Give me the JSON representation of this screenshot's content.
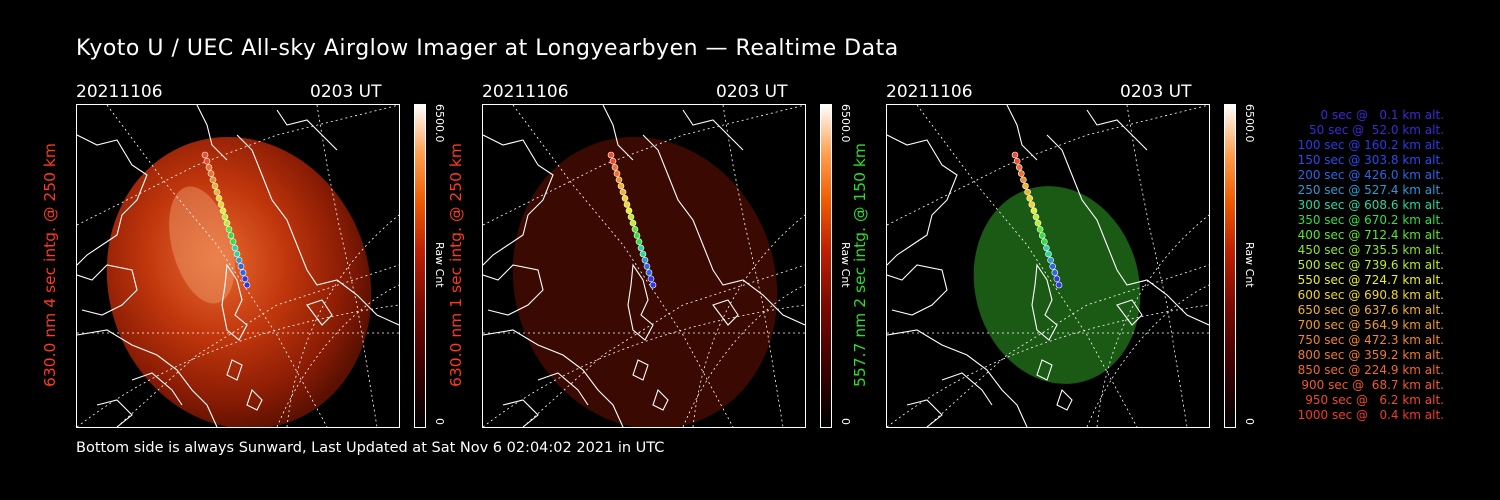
{
  "title": "Kyoto U / UEC All-sky Airglow Imager at Longyearbyen — Realtime Data",
  "footer": "Bottom side is always Sunward, Last Updated at Sat Nov  6 02:04:02 2021 in UTC",
  "panels": [
    {
      "date": "20211106",
      "time": "0203 UT",
      "label": "630.0 nm 4 sec intg. @ 250 km",
      "label_color": "#ff3a1a",
      "cbar_max": "6500.0",
      "cbar_unit": "Raw Cnt",
      "cbar_min": "0"
    },
    {
      "date": "20211106",
      "time": "0203 UT",
      "label": "630.0 nm 1 sec intg. @ 250 km",
      "label_color": "#ff3a1a",
      "cbar_max": "6500.0",
      "cbar_unit": "Raw Cnt",
      "cbar_min": "0"
    },
    {
      "date": "20211106",
      "time": "0203 UT",
      "label": "557.7 nm 2 sec intg. @ 150 km",
      "label_color": "#28e028",
      "cbar_max": "6500.0",
      "cbar_unit": "Raw Cnt",
      "cbar_min": "0"
    }
  ],
  "legend": [
    {
      "text": "   0 sec @   0.1 km alt.",
      "color": "#3a2ad6"
    },
    {
      "text": "  50 sec @  52.0 km alt.",
      "color": "#3a2ad6"
    },
    {
      "text": " 100 sec @ 160.2 km alt.",
      "color": "#2a3ae6"
    },
    {
      "text": " 150 sec @ 303.8 km alt.",
      "color": "#2a4af0"
    },
    {
      "text": " 200 sec @ 426.0 km alt.",
      "color": "#2a66e6"
    },
    {
      "text": " 250 sec @ 527.4 km alt.",
      "color": "#2a9ad6"
    },
    {
      "text": " 300 sec @ 608.6 km alt.",
      "color": "#2ad6a0"
    },
    {
      "text": " 350 sec @ 670.2 km alt.",
      "color": "#30e040"
    },
    {
      "text": " 400 sec @ 712.4 km alt.",
      "color": "#5ae62a"
    },
    {
      "text": " 450 sec @ 735.5 km alt.",
      "color": "#8ae62a"
    },
    {
      "text": " 500 sec @ 739.6 km alt.",
      "color": "#b8ee2a"
    },
    {
      "text": " 550 sec @ 724.7 km alt.",
      "color": "#e6f02a"
    },
    {
      "text": " 600 sec @ 690.8 km alt.",
      "color": "#f0d62a"
    },
    {
      "text": " 650 sec @ 637.6 km alt.",
      "color": "#f0b22a"
    },
    {
      "text": " 700 sec @ 564.9 km alt.",
      "color": "#f09a2a"
    },
    {
      "text": " 750 sec @ 472.3 km alt.",
      "color": "#f0882a"
    },
    {
      "text": " 800 sec @ 359.2 km alt.",
      "color": "#f07a2a"
    },
    {
      "text": " 850 sec @ 224.9 km alt.",
      "color": "#f06a2a"
    },
    {
      "text": " 900 sec @  68.7 km alt.",
      "color": "#f05a2a"
    },
    {
      "text": " 950 sec @   6.2 km alt.",
      "color": "#f04a2a"
    },
    {
      "text": "1000 sec @   0.4 km alt.",
      "color": "#f03a2a"
    }
  ],
  "colors": {
    "emission_red": "#c83200",
    "emission_green": "#1a8a1a",
    "map_lines": "#ffffff"
  },
  "trajectory_colors": [
    "#f04a2a",
    "#f0702a",
    "#f0902a",
    "#f0b22a",
    "#f0d62a",
    "#e6f02a",
    "#b8ee2a",
    "#5ae62a",
    "#30e040",
    "#2ad6a0",
    "#2a9ad6",
    "#2a66e6",
    "#2a3ae6"
  ]
}
